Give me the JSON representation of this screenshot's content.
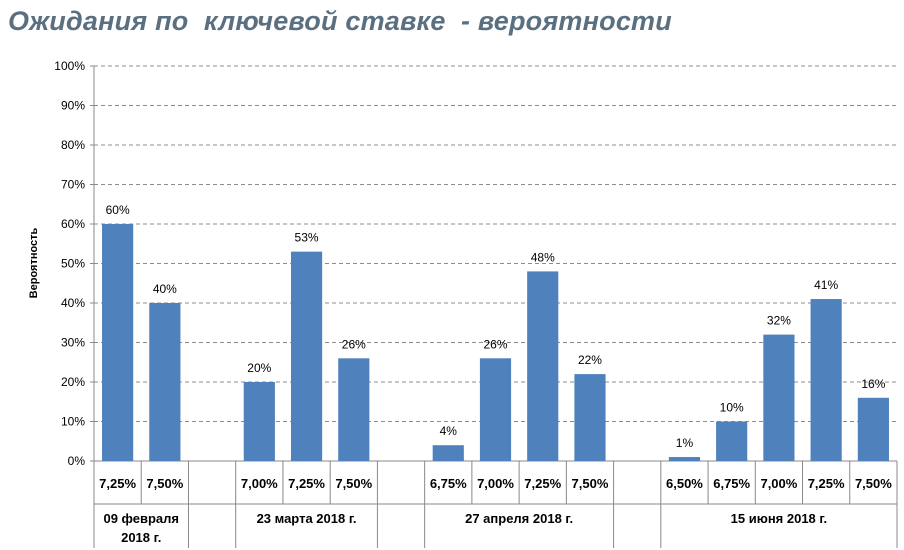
{
  "chart_data": {
    "type": "bar",
    "title": "Ожидания по  ключевой ставке  - вероятности",
    "ylabel": "Вероятность",
    "xlabel": "",
    "ylim": [
      0,
      100
    ],
    "yticks": [
      "0%",
      "10%",
      "20%",
      "30%",
      "40%",
      "50%",
      "60%",
      "70%",
      "80%",
      "90%",
      "100%"
    ],
    "grid": true,
    "bar_color": "#4f81bd",
    "groups": [
      {
        "name": "09 февраля 2018 г.",
        "name_lines": [
          "09 февраля",
          "2018 г."
        ],
        "categories": [
          "7,25%",
          "7,50%"
        ],
        "values": [
          60,
          40
        ],
        "labels": [
          "60%",
          "40%"
        ]
      },
      {
        "name": "23 марта 2018 г.",
        "name_lines": [
          "23 марта 2018 г."
        ],
        "categories": [
          "7,00%",
          "7,25%",
          "7,50%"
        ],
        "values": [
          20,
          53,
          26
        ],
        "labels": [
          "20%",
          "53%",
          "26%"
        ]
      },
      {
        "name": "27 апреля 2018 г.",
        "name_lines": [
          "27 апреля 2018 г."
        ],
        "categories": [
          "6,75%",
          "7,00%",
          "7,25%",
          "7,50%"
        ],
        "values": [
          4,
          26,
          48,
          22
        ],
        "labels": [
          "4%",
          "26%",
          "48%",
          "22%"
        ]
      },
      {
        "name": "15 июня 2018 г.",
        "name_lines": [
          "15 июня 2018 г."
        ],
        "categories": [
          "6,50%",
          "6,75%",
          "7,00%",
          "7,25%",
          "7,50%"
        ],
        "values": [
          1,
          10,
          32,
          41,
          16
        ],
        "labels": [
          "1%",
          "10%",
          "32%",
          "41%",
          "16%"
        ]
      }
    ]
  }
}
